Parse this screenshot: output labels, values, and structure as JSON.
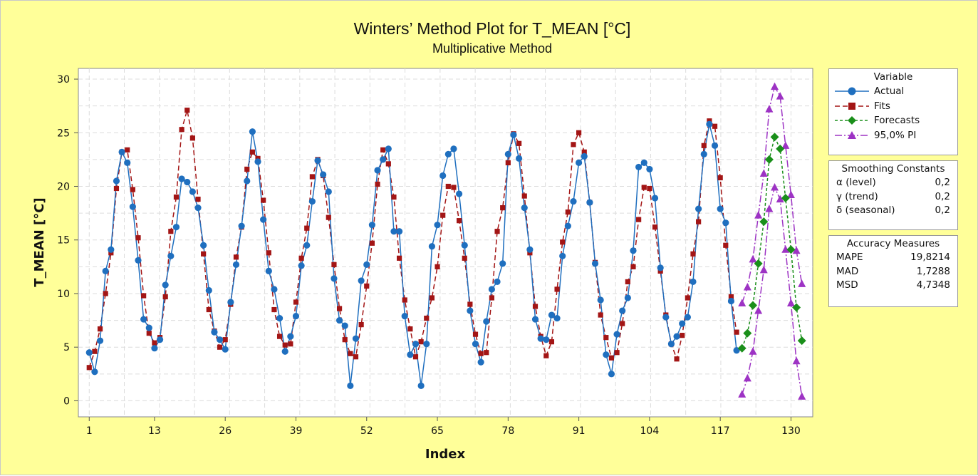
{
  "chart_data": {
    "type": "line",
    "title": "Winters’ Method Plot for T_MEAN [°C]",
    "subtitle": "Multiplicative Method",
    "xlabel": "Index",
    "ylabel": "T_MEAN [°C]",
    "xlim": [
      -1,
      134
    ],
    "ylim": [
      -1.5,
      31
    ],
    "xticks": [
      1,
      13,
      26,
      39,
      52,
      65,
      78,
      91,
      104,
      117,
      130
    ],
    "yticks": [
      0,
      5,
      10,
      15,
      20,
      25,
      30
    ],
    "grid": true,
    "legend": {
      "title": "Variable",
      "placement": "right",
      "entries": [
        "Actual",
        "Fits",
        "Forecasts",
        "95,0% PI"
      ]
    },
    "series": [
      {
        "name": "Actual",
        "color": "#1f6fbf",
        "marker": "circle",
        "x_start": 1,
        "values": [
          4.5,
          2.7,
          5.6,
          12.1,
          14.1,
          20.5,
          23.2,
          22.2,
          18.1,
          13.1,
          7.6,
          6.8,
          4.9,
          5.7,
          10.8,
          13.5,
          16.2,
          20.7,
          20.4,
          19.5,
          18.0,
          14.5,
          10.3,
          6.4,
          5.7,
          4.8,
          9.2,
          12.7,
          16.3,
          20.5,
          25.1,
          22.3,
          16.9,
          12.1,
          10.4,
          7.7,
          4.6,
          6.0,
          7.9,
          12.6,
          14.5,
          18.6,
          22.4,
          21.1,
          19.5,
          11.4,
          7.5,
          7.0,
          1.4,
          5.8,
          11.2,
          12.7,
          16.4,
          21.5,
          22.5,
          23.5,
          15.8,
          15.8,
          7.9,
          4.3,
          5.3,
          1.4,
          5.3,
          14.4,
          16.4,
          21.0,
          23.0,
          23.5,
          19.3,
          14.5,
          8.4,
          5.3,
          3.6,
          7.4,
          10.4,
          11.1,
          12.8,
          23.0,
          24.8,
          22.6,
          18.0,
          14.1,
          7.6,
          5.8,
          5.7,
          8.0,
          7.7,
          13.5,
          16.3,
          18.6,
          22.2,
          22.8,
          18.5,
          12.8,
          9.4,
          4.3,
          2.5,
          6.2,
          8.4,
          9.6,
          14.0,
          21.8,
          22.2,
          21.6,
          18.9,
          12.4,
          7.8,
          5.3,
          6.0,
          7.2,
          7.8,
          11.1,
          17.9,
          23.0,
          25.8,
          23.8,
          17.9,
          16.6,
          9.3,
          4.7
        ]
      },
      {
        "name": "Fits",
        "color": "#a31515",
        "marker": "square",
        "x_start": 1,
        "values": [
          3.1,
          4.6,
          6.7,
          10.0,
          13.8,
          19.8,
          23.2,
          23.4,
          19.7,
          15.2,
          9.8,
          6.3,
          5.4,
          5.9,
          9.7,
          15.8,
          19.0,
          25.3,
          27.1,
          24.5,
          18.8,
          13.7,
          8.5,
          6.5,
          5.0,
          5.7,
          9.0,
          13.4,
          16.2,
          21.6,
          23.2,
          22.6,
          18.7,
          13.8,
          8.5,
          6.0,
          5.2,
          5.3,
          9.2,
          13.3,
          16.1,
          20.9,
          22.5,
          21.0,
          17.1,
          12.7,
          8.6,
          5.7,
          4.4,
          4.1,
          7.1,
          10.7,
          14.7,
          20.2,
          23.4,
          22.1,
          19.0,
          13.3,
          9.4,
          6.7,
          4.1,
          5.5,
          7.7,
          9.6,
          12.5,
          17.3,
          20.0,
          19.9,
          16.8,
          13.3,
          9.0,
          6.2,
          4.4,
          4.5,
          9.6,
          15.8,
          18.0,
          22.2,
          24.9,
          24.0,
          19.1,
          13.8,
          8.8,
          6.0,
          4.2,
          5.5,
          10.4,
          14.8,
          17.6,
          23.9,
          25.0,
          23.2,
          18.5,
          12.9,
          8.0,
          5.9,
          4.0,
          4.5,
          7.2,
          11.1,
          12.5,
          16.9,
          19.9,
          19.8,
          16.2,
          12.1,
          8.0,
          5.3,
          3.9,
          6.1,
          9.6,
          13.7,
          16.7,
          23.8,
          26.1,
          25.6,
          20.8,
          14.5,
          9.7,
          6.4
        ]
      },
      {
        "name": "Forecasts",
        "color": "#1a8f1a",
        "marker": "diamond",
        "x_start": 121,
        "values": [
          4.9,
          6.3,
          8.9,
          12.8,
          16.7,
          22.5,
          24.6,
          23.5,
          18.9,
          14.1,
          8.7,
          5.6
        ]
      },
      {
        "name": "95,0% PI",
        "color": "#9d33c4",
        "marker": "triangle",
        "x_start": 121,
        "lower": [
          0.6,
          2.1,
          4.6,
          8.4,
          12.2,
          17.9,
          19.9,
          18.8,
          14.1,
          9.1,
          3.7,
          0.4
        ],
        "upper": [
          9.1,
          10.6,
          13.2,
          17.3,
          21.2,
          27.2,
          29.3,
          28.4,
          23.8,
          19.2,
          14.0,
          10.9
        ]
      }
    ]
  },
  "smoothing": {
    "title": "Smoothing Constants",
    "rows": [
      {
        "label": "α (level)",
        "value": "0,2"
      },
      {
        "label": "γ (trend)",
        "value": "0,2"
      },
      {
        "label": "δ (seasonal)",
        "value": "0,2"
      }
    ]
  },
  "accuracy": {
    "title": "Accuracy Measures",
    "rows": [
      {
        "label": "MAPE",
        "value": "19,8214"
      },
      {
        "label": "MAD",
        "value": "1,7288"
      },
      {
        "label": "MSD",
        "value": "4,7348"
      }
    ]
  }
}
